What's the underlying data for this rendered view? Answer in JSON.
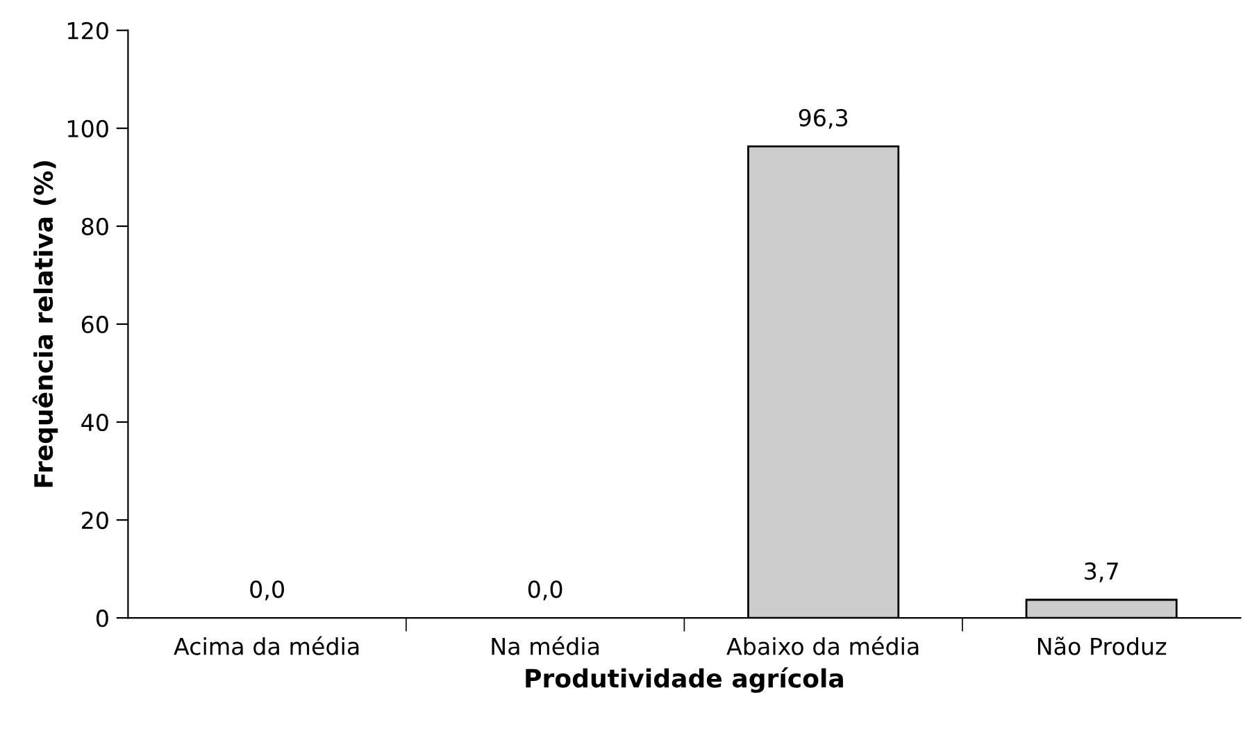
{
  "chart_data": {
    "type": "bar",
    "xlabel": "Produtividade agrícola",
    "ylabel": "Frequência relativa (%)",
    "categories": [
      "Acima da média",
      "Na média",
      "Abaixo da média",
      "Não Produz"
    ],
    "values": [
      0.0,
      0.0,
      96.3,
      3.7
    ],
    "value_labels": [
      "0,0",
      "0,0",
      "96,3",
      "3,7"
    ],
    "color": "#cccccc",
    "ylim": [
      0,
      120
    ],
    "yticks": [
      0,
      20,
      40,
      60,
      80,
      100,
      120
    ],
    "grid": false,
    "legend": false
  }
}
